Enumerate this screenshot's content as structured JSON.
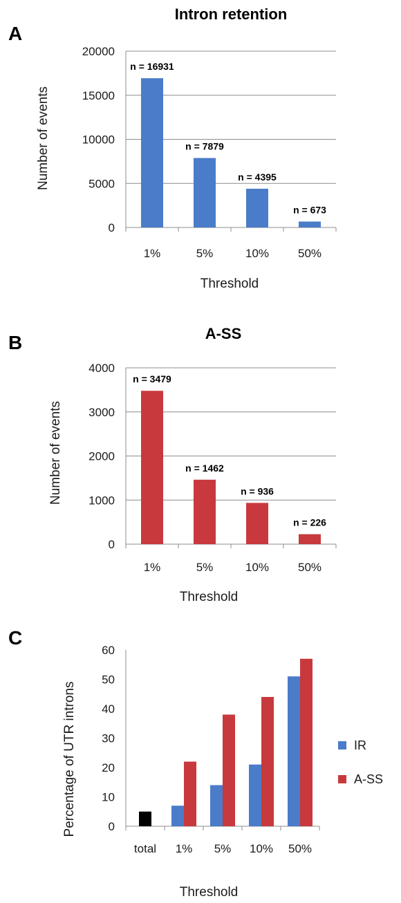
{
  "colors": {
    "ir_blue": "#4a7cc9",
    "ass_red": "#c8393d",
    "total_black": "#000000"
  },
  "chart_data": [
    {
      "panel": "A",
      "type": "bar",
      "title": "Intron retention",
      "xlabel": "Threshold",
      "ylabel": "Number of events",
      "categories": [
        "1%",
        "5%",
        "10%",
        "50%"
      ],
      "values": [
        16931,
        7879,
        4395,
        673
      ],
      "data_labels": [
        "n = 16931",
        "n = 7879",
        "n = 4395",
        "n = 673"
      ],
      "ylim": [
        0,
        20000
      ],
      "yticks": [
        0,
        5000,
        10000,
        15000,
        20000
      ],
      "ytick_labels": [
        "0",
        "5000",
        "10000",
        "15000",
        "20000"
      ],
      "grid": true,
      "color": "#4a7cc9"
    },
    {
      "panel": "B",
      "type": "bar",
      "title": "A-SS",
      "xlabel": "Threshold",
      "ylabel": "Number of events",
      "categories": [
        "1%",
        "5%",
        "10%",
        "50%"
      ],
      "values": [
        3479,
        1462,
        936,
        226
      ],
      "data_labels": [
        "n = 3479",
        "n = 1462",
        "n = 936",
        "n = 226"
      ],
      "ylim": [
        0,
        4000
      ],
      "yticks": [
        0,
        1000,
        2000,
        3000,
        4000
      ],
      "ytick_labels": [
        "0",
        "1000",
        "2000",
        "3000",
        "4000"
      ],
      "grid": true,
      "color": "#c8393d"
    },
    {
      "panel": "C",
      "type": "bar",
      "title": "",
      "xlabel": "Threshold",
      "ylabel": "Percentage of UTR introns",
      "categories": [
        "total",
        "1%",
        "5%",
        "10%",
        "50%"
      ],
      "total_value": 5,
      "series": [
        {
          "name": "IR",
          "values": [
            null,
            7,
            14,
            21,
            51
          ],
          "color": "#4a7cc9"
        },
        {
          "name": "A-SS",
          "values": [
            null,
            22,
            38,
            44,
            57
          ],
          "color": "#c8393d"
        }
      ],
      "ylim": [
        0,
        60
      ],
      "yticks": [
        0,
        10,
        20,
        30,
        40,
        50,
        60
      ],
      "ytick_labels": [
        "0",
        "10",
        "20",
        "30",
        "40",
        "50",
        "60"
      ],
      "grid": false,
      "legend_position": "right"
    }
  ]
}
